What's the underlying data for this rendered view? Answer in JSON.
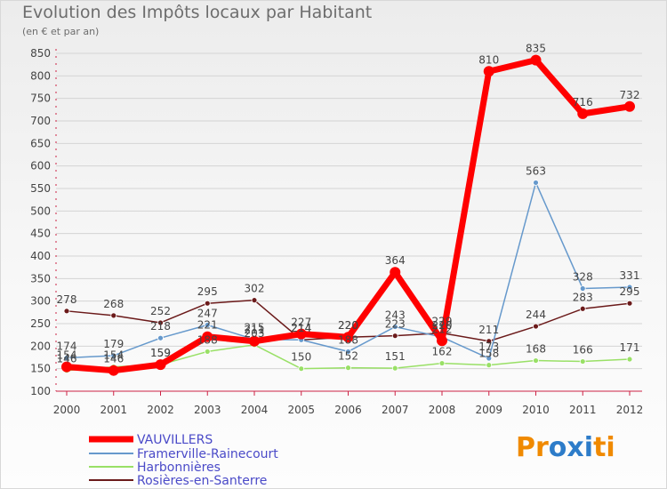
{
  "chart_data": {
    "type": "line",
    "title": "Evolution des Impôts locaux par Habitant",
    "subtitle": "(en € et par an)",
    "categories": [
      "2000",
      "2001",
      "2002",
      "2003",
      "2004",
      "2005",
      "2006",
      "2007",
      "2008",
      "2009",
      "2010",
      "2011",
      "2012"
    ],
    "yticks": [
      100,
      150,
      200,
      250,
      300,
      350,
      400,
      450,
      500,
      550,
      600,
      650,
      700,
      750,
      800,
      850
    ],
    "ylim": [
      100,
      850
    ],
    "series": [
      {
        "name": "Rosières-en-Santerre",
        "color": "#6b1a1a",
        "values": [
          278,
          268,
          252,
          295,
          302,
          214,
          220,
          223,
          229,
          211,
          244,
          283,
          295
        ]
      },
      {
        "name": "Harbonnières",
        "color": "#99e066",
        "values": [
          146,
          154,
          159,
          188,
          203,
          150,
          152,
          151,
          162,
          158,
          168,
          166,
          171
        ]
      },
      {
        "name": "Framerville-Rainecourt",
        "color": "#6699cc",
        "values": [
          174,
          179,
          218,
          247,
          215,
          214,
          188,
          243,
          220,
          173,
          563,
          328,
          331
        ]
      },
      {
        "name": "VAUVILLERS",
        "color": "#ff0000",
        "values": [
          154,
          146,
          159,
          221,
          211,
          227,
          220,
          364,
          212,
          810,
          835,
          716,
          732
        ]
      }
    ],
    "point_labels": {
      "VAUVILLERS": [
        "154",
        "146",
        "159",
        "221",
        "211",
        "227",
        "220",
        "364",
        "212",
        "810",
        "835",
        "716",
        "732"
      ],
      "Framerville-Rainecourt": [
        "174",
        "179",
        "218",
        "247",
        "215",
        "214",
        "188",
        "243",
        "220",
        "173",
        "563",
        "328",
        "331"
      ],
      "Harbonnières": [
        "146",
        "154",
        "159",
        "188",
        "203",
        "150",
        "152",
        "151",
        "162",
        "158",
        "168",
        "166",
        "171"
      ],
      "Rosières-en-Santerre": [
        "278",
        "268",
        "252",
        "295",
        "302",
        "214",
        "220",
        "223",
        "229",
        "211",
        "244",
        "283",
        "295"
      ]
    },
    "legend": [
      "VAUVILLERS",
      "Framerville-Rainecourt",
      "Harbonnières",
      "Rosières-en-Santerre"
    ],
    "legend_position": "bottom-left"
  },
  "logo": {
    "text": "Proxiti",
    "letters": [
      "P",
      "r",
      "o",
      "x",
      "i",
      "t",
      "i"
    ],
    "colors": [
      "#f08a00",
      "#f08a00",
      "#2d7cc9",
      "#2d7cc9",
      "#2d7cc9",
      "#f08a00",
      "#f08a00"
    ]
  }
}
